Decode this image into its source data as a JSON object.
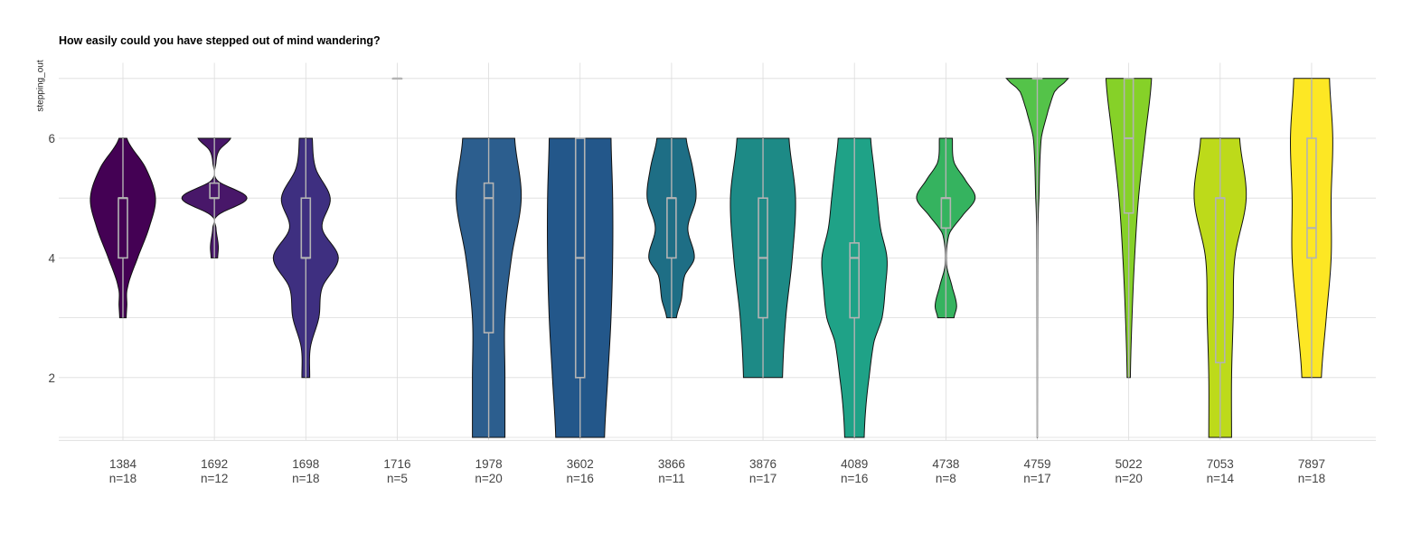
{
  "chart_data": {
    "type": "violin",
    "title": "How easily could you have stepped out of mind wandering?",
    "ylabel": "stepping_out",
    "xlabel": "",
    "ylim": [
      0.95,
      7.05
    ],
    "yticks": [
      2,
      4,
      6
    ],
    "grid": true,
    "groups": [
      {
        "id": "1384",
        "n": "n=18",
        "color": "#440154",
        "min": 3,
        "q1": 4,
        "median": 5,
        "q3": 5,
        "max": 6,
        "density": [
          [
            3,
            0.1
          ],
          [
            3.2,
            0.12
          ],
          [
            3.5,
            0.14
          ],
          [
            4,
            0.45
          ],
          [
            4.5,
            0.8
          ],
          [
            5,
            1.0
          ],
          [
            5.5,
            0.7
          ],
          [
            6,
            0.12
          ]
        ]
      },
      {
        "id": "1692",
        "n": "n=12",
        "color": "#481769",
        "min": 4,
        "q1": 5,
        "median": 5,
        "q3": 5.25,
        "max": 6,
        "density": [
          [
            4,
            0.1
          ],
          [
            4.2,
            0.12
          ],
          [
            4.5,
            0.05
          ],
          [
            4.7,
            0.08
          ],
          [
            5,
            1.0
          ],
          [
            5.3,
            0.08
          ],
          [
            5.6,
            0.05
          ],
          [
            5.8,
            0.15
          ],
          [
            6,
            0.5
          ]
        ]
      },
      {
        "id": "1698",
        "n": "n=18",
        "color": "#3e2f80",
        "min": 2,
        "q1": 4,
        "median": 4,
        "q3": 5,
        "max": 6,
        "density": [
          [
            2,
            0.12
          ],
          [
            2.5,
            0.14
          ],
          [
            3,
            0.4
          ],
          [
            3.5,
            0.5
          ],
          [
            4,
            1.0
          ],
          [
            4.5,
            0.5
          ],
          [
            5,
            0.75
          ],
          [
            5.5,
            0.3
          ],
          [
            6,
            0.2
          ]
        ]
      },
      {
        "id": "1716",
        "n": "n=5",
        "color": "#33528c",
        "min": 7,
        "q1": 7,
        "median": 7,
        "q3": 7,
        "max": 7,
        "density": []
      },
      {
        "id": "1978",
        "n": "n=20",
        "color": "#2c5e8e",
        "min": 1,
        "q1": 2.75,
        "median": 5,
        "q3": 5.25,
        "max": 6,
        "density": [
          [
            1,
            0.5
          ],
          [
            2,
            0.5
          ],
          [
            3,
            0.5
          ],
          [
            4,
            0.7
          ],
          [
            5,
            1.0
          ],
          [
            6,
            0.8
          ]
        ]
      },
      {
        "id": "3602",
        "n": "n=16",
        "color": "#23578a",
        "min": 1,
        "q1": 2,
        "median": 4,
        "q3": 6,
        "max": 6,
        "density": [
          [
            1,
            0.75
          ],
          [
            2,
            0.85
          ],
          [
            3,
            0.95
          ],
          [
            4,
            1.0
          ],
          [
            5,
            1.0
          ],
          [
            6,
            0.95
          ]
        ]
      },
      {
        "id": "3866",
        "n": "n=11",
        "color": "#1e6e85",
        "min": 3,
        "q1": 4,
        "median": 5,
        "q3": 5,
        "max": 6,
        "density": [
          [
            3,
            0.15
          ],
          [
            3.3,
            0.3
          ],
          [
            3.7,
            0.4
          ],
          [
            4,
            0.7
          ],
          [
            4.5,
            0.5
          ],
          [
            5,
            0.75
          ],
          [
            5.5,
            0.65
          ],
          [
            6,
            0.45
          ]
        ]
      },
      {
        "id": "3876",
        "n": "n=17",
        "color": "#1d8a86",
        "min": 2,
        "q1": 3,
        "median": 4,
        "q3": 5,
        "max": 6,
        "density": [
          [
            2,
            0.6
          ],
          [
            3,
            0.7
          ],
          [
            4,
            0.9
          ],
          [
            5,
            1.0
          ],
          [
            6,
            0.8
          ]
        ]
      },
      {
        "id": "4089",
        "n": "n=16",
        "color": "#1fa287",
        "min": 1,
        "q1": 3,
        "median": 4,
        "q3": 4.25,
        "max": 6,
        "density": [
          [
            1,
            0.3
          ],
          [
            1.5,
            0.35
          ],
          [
            2,
            0.45
          ],
          [
            2.6,
            0.6
          ],
          [
            3,
            0.85
          ],
          [
            3.5,
            0.95
          ],
          [
            4,
            1.0
          ],
          [
            4.5,
            0.8
          ],
          [
            5,
            0.7
          ],
          [
            5.5,
            0.6
          ],
          [
            6,
            0.5
          ]
        ]
      },
      {
        "id": "4738",
        "n": "n=8",
        "color": "#35b35f",
        "min": 3,
        "q1": 4.5,
        "median": 5,
        "q3": 5,
        "max": 6,
        "density": [
          [
            3,
            0.25
          ],
          [
            3.2,
            0.33
          ],
          [
            3.5,
            0.2
          ],
          [
            3.9,
            0.02
          ],
          [
            4.4,
            0.1
          ],
          [
            4.7,
            0.5
          ],
          [
            5,
            0.9
          ],
          [
            5.3,
            0.6
          ],
          [
            5.6,
            0.25
          ],
          [
            6,
            0.2
          ]
        ]
      },
      {
        "id": "4759",
        "n": "n=17",
        "color": "#54c349",
        "min": 1,
        "q1": 7,
        "median": 7,
        "q3": 7,
        "max": 7,
        "density": [
          [
            1,
            0.005
          ],
          [
            3,
            0.01
          ],
          [
            4.5,
            0.02
          ],
          [
            5,
            0.05
          ],
          [
            6,
            0.12
          ],
          [
            6.5,
            0.35
          ],
          [
            6.8,
            0.55
          ],
          [
            7,
            0.95
          ]
        ]
      },
      {
        "id": "5022",
        "n": "n=20",
        "color": "#86d128",
        "min": 2,
        "q1": 4.75,
        "median": 6,
        "q3": 7,
        "max": 7,
        "density": [
          [
            2,
            0.05
          ],
          [
            3,
            0.1
          ],
          [
            4,
            0.18
          ],
          [
            5,
            0.3
          ],
          [
            6,
            0.5
          ],
          [
            7,
            0.7
          ]
        ]
      },
      {
        "id": "7053",
        "n": "n=14",
        "color": "#bdda1a",
        "min": 1,
        "q1": 2.25,
        "median": 5,
        "q3": 5,
        "max": 6,
        "density": [
          [
            1,
            0.35
          ],
          [
            2,
            0.35
          ],
          [
            3,
            0.4
          ],
          [
            4,
            0.45
          ],
          [
            5,
            0.8
          ],
          [
            6,
            0.6
          ]
        ]
      },
      {
        "id": "7897",
        "n": "n=18",
        "color": "#fde724",
        "min": 2,
        "q1": 4,
        "median": 4.5,
        "q3": 6,
        "max": 7,
        "density": [
          [
            2,
            0.3
          ],
          [
            3,
            0.45
          ],
          [
            4,
            0.6
          ],
          [
            5,
            0.6
          ],
          [
            6,
            0.65
          ],
          [
            7,
            0.55
          ]
        ]
      }
    ]
  }
}
